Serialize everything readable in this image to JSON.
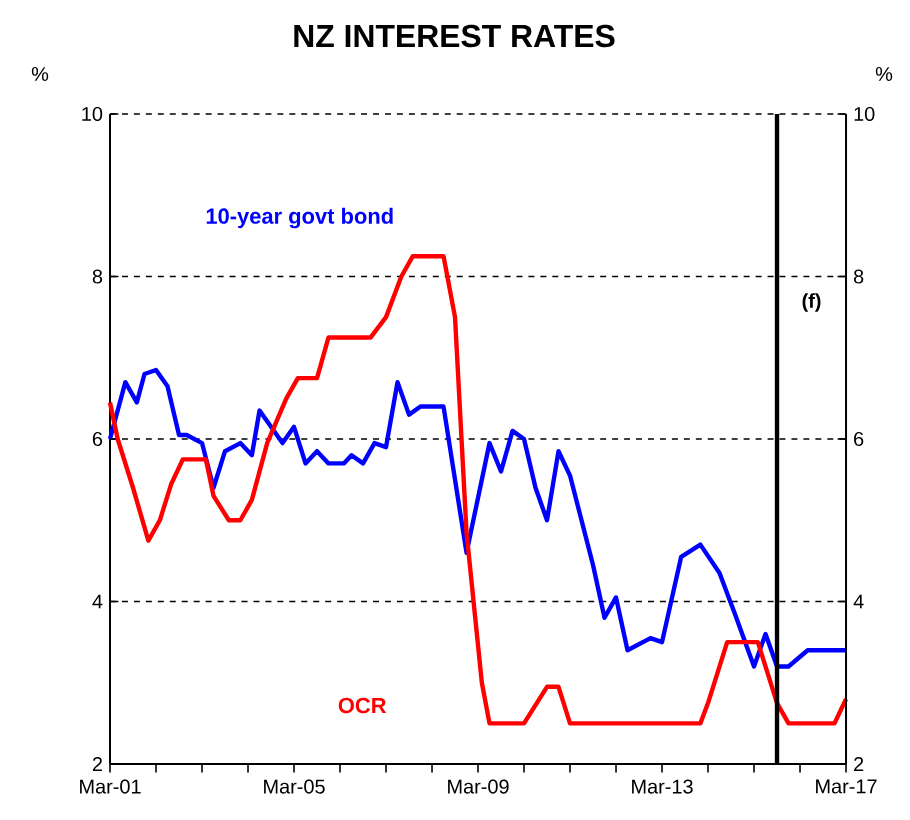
{
  "chart_data": {
    "type": "line",
    "title": "NZ INTEREST  RATES",
    "ylabel": "%",
    "y2label": "%",
    "xlim": [
      "2001-03",
      "2017-03"
    ],
    "xticks": [
      {
        "value": "2001-03",
        "label": "Mar-01"
      },
      {
        "value": "2002-03",
        "label": null
      },
      {
        "value": "2003-03",
        "label": null
      },
      {
        "value": "2004-03",
        "label": null
      },
      {
        "value": "2005-03",
        "label": "Mar-05"
      },
      {
        "value": "2006-03",
        "label": null
      },
      {
        "value": "2007-03",
        "label": null
      },
      {
        "value": "2008-03",
        "label": null
      },
      {
        "value": "2009-03",
        "label": "Mar-09"
      },
      {
        "value": "2010-03",
        "label": null
      },
      {
        "value": "2011-03",
        "label": null
      },
      {
        "value": "2012-03",
        "label": null
      },
      {
        "value": "2013-03",
        "label": "Mar-13"
      },
      {
        "value": "2014-03",
        "label": null
      },
      {
        "value": "2015-03",
        "label": null
      },
      {
        "value": "2016-03",
        "label": null
      },
      {
        "value": "2017-03",
        "label": "Mar-17"
      }
    ],
    "ylim": [
      2,
      10
    ],
    "yticks": [
      2,
      4,
      6,
      8,
      10
    ],
    "y2lim": [
      2,
      10
    ],
    "y2ticks": [
      2,
      4,
      6,
      8,
      10
    ],
    "grid": "y",
    "ref_lines": [
      {
        "axis": "x",
        "value": "2015-09",
        "label": "(f)",
        "color": "#000000"
      }
    ],
    "series": [
      {
        "name": "10-year govt bond",
        "color": "#0000ff",
        "x": [
          "2001-03",
          "2001-07",
          "2001-10",
          "2001-12",
          "2002-03",
          "2002-06",
          "2002-09",
          "2002-11",
          "2003-03",
          "2003-06",
          "2003-09",
          "2004-01",
          "2004-04",
          "2004-06",
          "2004-12",
          "2005-03",
          "2005-06",
          "2005-09",
          "2005-12",
          "2006-04",
          "2006-06",
          "2006-09",
          "2006-12",
          "2007-03",
          "2007-06",
          "2007-09",
          "2007-12",
          "2008-03",
          "2008-06",
          "2008-12",
          "2009-06",
          "2009-09",
          "2009-12",
          "2010-03",
          "2010-06",
          "2010-09",
          "2010-12",
          "2011-03",
          "2011-09",
          "2011-12",
          "2012-03",
          "2012-06",
          "2012-12",
          "2013-03",
          "2013-08",
          "2014-01",
          "2014-06",
          "2014-10",
          "2015-03",
          "2015-06",
          "2015-09",
          "2015-12",
          "2016-05",
          "2017-03"
        ],
        "values": [
          6.0,
          6.7,
          6.45,
          6.8,
          6.85,
          6.65,
          6.05,
          6.05,
          5.95,
          5.4,
          5.85,
          5.95,
          5.8,
          6.35,
          5.95,
          6.15,
          5.7,
          5.85,
          5.7,
          5.7,
          5.8,
          5.7,
          5.95,
          5.9,
          6.7,
          6.3,
          6.4,
          6.4,
          6.4,
          4.6,
          5.95,
          5.6,
          6.1,
          6.0,
          5.4,
          5.0,
          5.85,
          5.55,
          4.45,
          3.8,
          4.05,
          3.4,
          3.55,
          3.5,
          4.55,
          4.7,
          4.35,
          3.85,
          3.2,
          3.6,
          3.2,
          3.2,
          3.4,
          3.4
        ]
      },
      {
        "name": "OCR",
        "color": "#ff0000",
        "x": [
          "2001-03",
          "2001-05",
          "2001-09",
          "2002-01",
          "2002-04",
          "2002-07",
          "2002-10",
          "2003-04",
          "2003-06",
          "2003-10",
          "2004-01",
          "2004-04",
          "2004-08",
          "2005-01",
          "2005-04",
          "2005-09",
          "2005-12",
          "2006-11",
          "2007-03",
          "2007-07",
          "2007-10",
          "2008-06",
          "2008-09",
          "2008-12",
          "2009-04",
          "2009-06",
          "2010-03",
          "2010-09",
          "2010-12",
          "2011-03",
          "2014-01",
          "2014-03",
          "2014-08",
          "2015-04",
          "2015-09",
          "2015-12",
          "2016-12",
          "2017-03"
        ],
        "values": [
          6.45,
          6.0,
          5.4,
          4.75,
          5.0,
          5.45,
          5.75,
          5.75,
          5.3,
          5.0,
          5.0,
          5.25,
          5.95,
          6.5,
          6.75,
          6.75,
          7.25,
          7.25,
          7.5,
          8.0,
          8.25,
          8.25,
          7.5,
          4.85,
          3.0,
          2.5,
          2.5,
          2.95,
          2.95,
          2.5,
          2.5,
          2.75,
          3.5,
          3.5,
          2.75,
          2.5,
          2.5,
          2.8
        ]
      }
    ]
  }
}
